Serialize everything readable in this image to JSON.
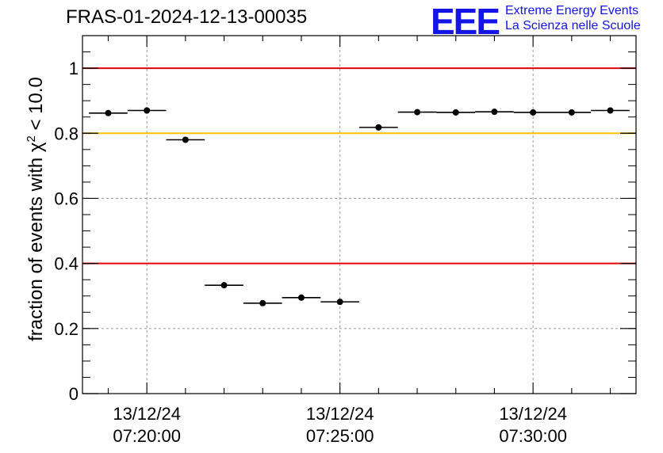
{
  "header": {
    "run_id": "FRAS-01-2024-12-13-00035",
    "logo_mark": "EEE",
    "logo_line1": "Extreme Energy Events",
    "logo_line2": "La Scienza nelle Scuole"
  },
  "chart_data": {
    "type": "scatter",
    "title": "FRAS-01-2024-12-13-00035",
    "ylabel_prefix": "fraction of events with χ",
    "ylabel_sup": "2",
    "ylabel_suffix": " < 10.0",
    "xlabel": "",
    "xlim": [
      "07:18:20",
      "07:32:40"
    ],
    "ylim": [
      0,
      1.1
    ],
    "yticks": [
      0,
      0.2,
      0.4,
      0.6,
      0.8,
      1
    ],
    "ytick_labels": [
      "0",
      "0.2",
      "0.4",
      "0.6",
      "0.8",
      "1"
    ],
    "xticks": [
      {
        "time": "07:20:00",
        "date": "13/12/24"
      },
      {
        "time": "07:25:00",
        "date": "13/12/24"
      },
      {
        "time": "07:30:00",
        "date": "13/12/24"
      }
    ],
    "grid": true,
    "reference_lines": [
      {
        "y": 1.0,
        "color": "#e60000"
      },
      {
        "y": 0.8,
        "color": "#ffc000"
      },
      {
        "y": 0.4,
        "color": "#e60000"
      }
    ],
    "bin_width_minutes": 1,
    "points": [
      {
        "x": "07:19:00",
        "y": 0.862
      },
      {
        "x": "07:20:00",
        "y": 0.87
      },
      {
        "x": "07:21:00",
        "y": 0.78
      },
      {
        "x": "07:22:00",
        "y": 0.333
      },
      {
        "x": "07:23:00",
        "y": 0.278
      },
      {
        "x": "07:24:00",
        "y": 0.295
      },
      {
        "x": "07:25:00",
        "y": 0.282
      },
      {
        "x": "07:26:00",
        "y": 0.818
      },
      {
        "x": "07:27:00",
        "y": 0.865
      },
      {
        "x": "07:28:00",
        "y": 0.864
      },
      {
        "x": "07:29:00",
        "y": 0.866
      },
      {
        "x": "07:30:00",
        "y": 0.864
      },
      {
        "x": "07:31:00",
        "y": 0.864
      },
      {
        "x": "07:32:00",
        "y": 0.87
      }
    ],
    "colors": {
      "marker": "#000000",
      "frame": "#000000",
      "grid": "#999999"
    }
  }
}
